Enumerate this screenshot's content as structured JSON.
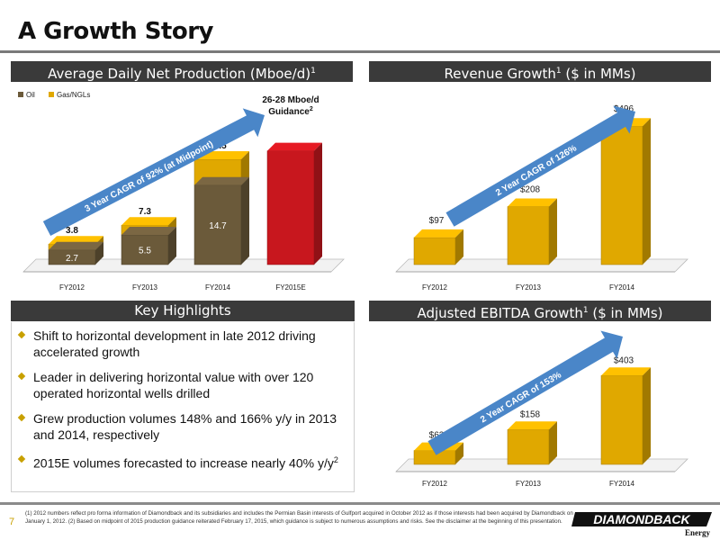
{
  "slide": {
    "title": "A Growth Story",
    "page_number": "7",
    "footnote": "(1) 2012 numbers reflect pro forma information of Diamondback and its subsidiaries and includes the Permian Basin interests of Gulfport acquired in October 2012 as if those interests had been acquired by Diamondback on January 1, 2012. (2) Based on midpoint of 2015 production guidance reiterated February 17, 2015, which guidance is subject to numerous assumptions and risks. See the disclaimer at the beginning of this presentation.",
    "logo_text": "DIAMONDBACK",
    "logo_subtext": "Energy"
  },
  "colors": {
    "oil": "#6b5a3a",
    "gas": "#e0a800",
    "guidance": "#c8171e",
    "arrow": "#4a86c8",
    "header": "#3a3a3a"
  },
  "production_panel": {
    "header": "Average Daily Net Production (Mboe/d)",
    "header_sup": "1",
    "arrow_label": "3 Year CAGR of 92% (at Midpoint)",
    "guidance_label_line1": "26-28 Mboe/d",
    "guidance_label_line2": "Guidance",
    "guidance_sup": "2"
  },
  "revenue_panel": {
    "header": "Revenue Growth",
    "header_sup": "1",
    "header_suffix": " ($ in MMs)",
    "arrow_label": "2 Year CAGR of 126%"
  },
  "ebitda_panel": {
    "header": "Adjusted EBITDA Growth",
    "header_sup": "1",
    "header_suffix": " ($ in MMs)",
    "arrow_label": "2 Year CAGR of 153%"
  },
  "highlights_panel": {
    "header": "Key Highlights",
    "items": [
      "Shift to horizontal development in late 2012 driving accelerated growth",
      "Leader in delivering horizontal value with over 120 operated horizontal wells drilled",
      "Grew production volumes 148% and 166% y/y in 2013 and 2014, respectively",
      "2015E volumes forecasted to increase nearly 40% y/y"
    ],
    "last_sup": "2"
  },
  "chart_data": [
    {
      "type": "bar",
      "title": "Average Daily Net Production (Mboe/d)",
      "categories": [
        "FY2012",
        "FY2013",
        "FY2014",
        "FY2015E"
      ],
      "series": [
        {
          "name": "Oil",
          "values": [
            2.7,
            5.5,
            14.7,
            null
          ]
        },
        {
          "name": "Gas/NGLs",
          "values": [
            1.1,
            1.8,
            4.8,
            null
          ]
        }
      ],
      "totals": [
        3.8,
        7.3,
        19.5,
        27
      ],
      "total_labels": [
        "3.8",
        "7.3",
        "19.5",
        ""
      ],
      "oil_labels": [
        "2.7",
        "5.5",
        "14.7",
        ""
      ],
      "guidance": {
        "category": "FY2015E",
        "low": 26,
        "high": 28,
        "midpoint": 27
      },
      "legend": [
        "Oil",
        "Gas/NGLs"
      ],
      "legend_position": "top-left",
      "ylim": [
        0,
        30
      ]
    },
    {
      "type": "bar",
      "title": "Revenue Growth ($ in MMs)",
      "categories": [
        "FY2012",
        "FY2013",
        "FY2014"
      ],
      "values": [
        97,
        208,
        496
      ],
      "labels": [
        "$97",
        "$208",
        "$496"
      ],
      "ylim": [
        0,
        520
      ]
    },
    {
      "type": "bar",
      "title": "Adjusted EBITDA Growth ($ in MMs)",
      "categories": [
        "FY2012",
        "FY2013",
        "FY2014"
      ],
      "values": [
        63,
        158,
        403
      ],
      "labels": [
        "$63",
        "$158",
        "$403"
      ],
      "ylim": [
        0,
        430
      ]
    }
  ]
}
